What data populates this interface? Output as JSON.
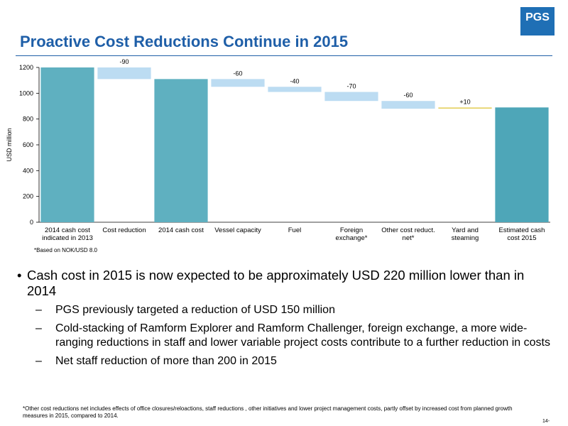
{
  "header": {
    "title": "Proactive Cost Reductions Continue in 2015",
    "logo": "PGS"
  },
  "chart_data": {
    "type": "waterfall",
    "y_label": "USD million",
    "categories": [
      "2014 cash cost indicated in 2013",
      "Cost reduction",
      "2014 cash cost",
      "Vessel capacity",
      "Fuel",
      "Foreign exchange*",
      "Other cost reduct. net*",
      "Yard and steaming",
      "Estimated cash cost 2015"
    ],
    "values": [
      1200,
      -90,
      1110,
      -60,
      -40,
      -70,
      -60,
      10,
      890
    ],
    "measure": [
      "absolute",
      "relative",
      "absolute",
      "relative",
      "relative",
      "relative",
      "relative",
      "relative",
      "absolute"
    ],
    "value_labels": [
      null,
      "-90",
      null,
      "-60",
      "-40",
      "-70",
      "-60",
      "+10",
      null
    ],
    "colors": [
      "#5fb0c0",
      "#bcdcf2",
      "#5fb0c0",
      "#bcdcf2",
      "#bcdcf2",
      "#bcdcf2",
      "#bcdcf2",
      "#e6d36a",
      "#4ea6b8"
    ],
    "ylim": [
      0,
      1200
    ],
    "yticks": [
      0,
      200,
      400,
      600,
      800,
      1000,
      1200
    ],
    "note": "*Based on NOK/USD 8.0"
  },
  "bullets": [
    {
      "text": "Cash cost in 2015 is now expected to be approximately USD 220 million lower than in 2014",
      "sub": [
        "PGS previously targeted a reduction of USD 150 million",
        "Cold-stacking of Ramform Explorer and Ramform Challenger, foreign exchange, a more wide-ranging reductions in staff and lower variable project costs contribute to a further reduction in costs",
        "Net staff reduction of more than 200 in 2015"
      ]
    }
  ],
  "footnote": "*Other cost reductions net includes effects of office closures/reloactions, staff reductions , other initiatives and lower project management costs, partly offset by increased cost from planned growth measures in 2015, compared to 2014.",
  "page_number": "14-"
}
